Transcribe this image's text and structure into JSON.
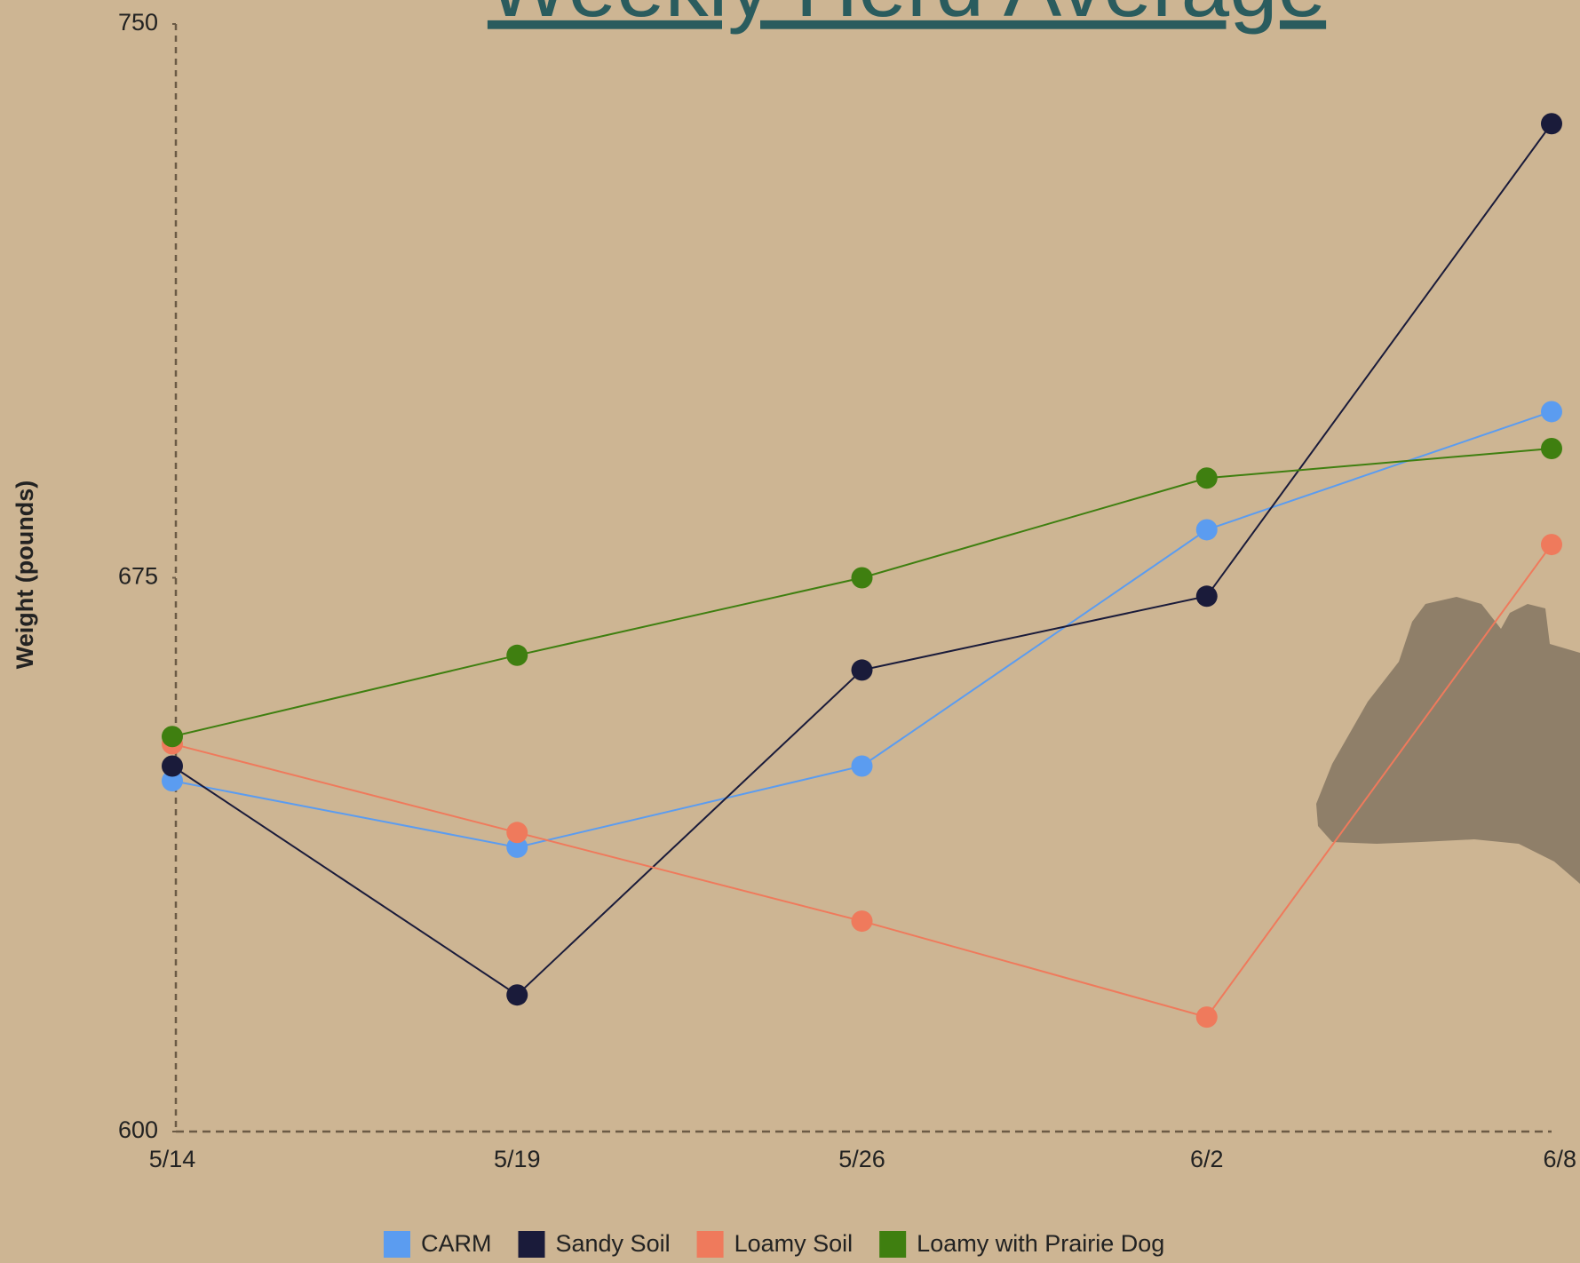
{
  "chart_data": {
    "type": "line",
    "title": "Weekly Herd Average",
    "y_label": "Weight (pounds)",
    "categories": [
      "5/14",
      "5/19",
      "5/26",
      "6/2",
      "6/8"
    ],
    "series": [
      {
        "name": "CARM",
        "color": "#5b9cf0",
        "values": [
          647.5,
          638.5,
          649.5,
          681.5,
          697.5
        ]
      },
      {
        "name": "Sandy Soil",
        "color": "#1a1b3a",
        "values": [
          649.5,
          618.5,
          662.5,
          672.5,
          736.5
        ]
      },
      {
        "name": "Loamy Soil",
        "color": "#ef7a5c",
        "values": [
          652.5,
          640.5,
          628.5,
          615.5,
          679.5
        ]
      },
      {
        "name": "Loamy with Prairie Dog",
        "color": "#3f7f10",
        "values": [
          653.5,
          664.5,
          675,
          688.5,
          692.5
        ]
      }
    ],
    "ylim": [
      600,
      750
    ],
    "yticks": [
      600,
      675,
      750
    ]
  }
}
